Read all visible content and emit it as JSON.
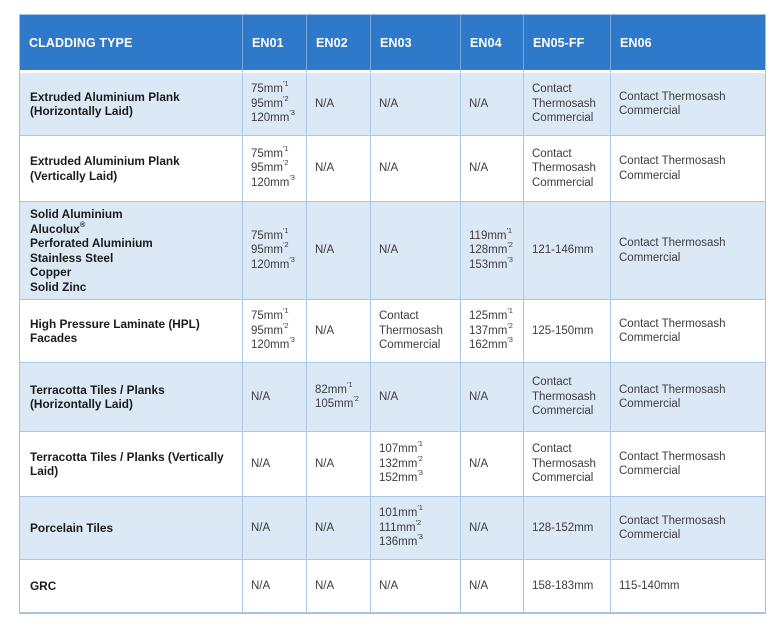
{
  "colors": {
    "header_bg": "#2e79c9",
    "header_text": "#ffffff",
    "row_alt_bg": "#dbe9f7",
    "row_bg": "#ffffff",
    "border": "#a9c7e7",
    "type_text": "#1b1b1b",
    "cell_text": "#3d3d3d"
  },
  "table": {
    "header": {
      "columns": [
        "CLADDING TYPE",
        "EN01",
        "EN02",
        "EN03",
        "EN04",
        "EN05-FF",
        "EN06"
      ]
    },
    "rows": [
      {
        "cells": [
          [
            {
              "t": "Extruded Aluminium Plank"
            },
            {
              "t": "(Horizontally Laid)"
            }
          ],
          [
            {
              "t": "75mm",
              "s": "′1"
            },
            {
              "t": "95mm",
              "s": "′2"
            },
            {
              "t": "120mm",
              "s": "′3"
            }
          ],
          [
            {
              "t": "N/A"
            }
          ],
          [
            {
              "t": "N/A"
            }
          ],
          [
            {
              "t": "N/A"
            }
          ],
          [
            {
              "t": "Contact"
            },
            {
              "t": "Thermosash"
            },
            {
              "t": "Commercial"
            }
          ],
          [
            {
              "t": "Contact Thermosash"
            },
            {
              "t": "Commercial"
            }
          ]
        ]
      },
      {
        "cells": [
          [
            {
              "t": "Extruded Aluminium Plank"
            },
            {
              "t": "(Vertically Laid)"
            }
          ],
          [
            {
              "t": "75mm",
              "s": "′1"
            },
            {
              "t": "95mm",
              "s": "′2"
            },
            {
              "t": "120mm",
              "s": "′3"
            }
          ],
          [
            {
              "t": "N/A"
            }
          ],
          [
            {
              "t": "N/A"
            }
          ],
          [
            {
              "t": "N/A"
            }
          ],
          [
            {
              "t": "Contact"
            },
            {
              "t": "Thermosash"
            },
            {
              "t": "Commercial"
            }
          ],
          [
            {
              "t": "Contact Thermosash"
            },
            {
              "t": "Commercial"
            }
          ]
        ]
      },
      {
        "cells": [
          [
            {
              "t": "Solid Aluminium"
            },
            {
              "t": "Alucolux",
              "s": "®"
            },
            {
              "t": "Perforated Aluminium"
            },
            {
              "t": "Stainless Steel"
            },
            {
              "t": "Copper"
            },
            {
              "t": "Solid Zinc"
            }
          ],
          [
            {
              "t": "75mm",
              "s": "′1"
            },
            {
              "t": "95mm",
              "s": "′2"
            },
            {
              "t": "120mm",
              "s": "′3"
            }
          ],
          [
            {
              "t": "N/A"
            }
          ],
          [
            {
              "t": "N/A"
            }
          ],
          [
            {
              "t": "119mm",
              "s": "′1"
            },
            {
              "t": "128mm",
              "s": "′2"
            },
            {
              "t": "153mm",
              "s": "′3"
            }
          ],
          [
            {
              "t": "121-146mm"
            }
          ],
          [
            {
              "t": "Contact Thermosash"
            },
            {
              "t": "Commercial"
            }
          ]
        ]
      },
      {
        "cells": [
          [
            {
              "t": "High Pressure Laminate (HPL)"
            },
            {
              "t": "Facades"
            }
          ],
          [
            {
              "t": "75mm",
              "s": "′1"
            },
            {
              "t": "95mm",
              "s": "′2"
            },
            {
              "t": "120mm",
              "s": "′3"
            }
          ],
          [
            {
              "t": "N/A"
            }
          ],
          [
            {
              "t": "Contact"
            },
            {
              "t": "Thermosash"
            },
            {
              "t": "Commercial"
            }
          ],
          [
            {
              "t": "125mm",
              "s": "′1"
            },
            {
              "t": "137mm",
              "s": "′2"
            },
            {
              "t": "162mm",
              "s": "′3"
            }
          ],
          [
            {
              "t": "125-150mm"
            }
          ],
          [
            {
              "t": "Contact Thermosash"
            },
            {
              "t": "Commercial"
            }
          ]
        ]
      },
      {
        "cells": [
          [
            {
              "t": "Terracotta Tiles / Planks"
            },
            {
              "t": "(Horizontally Laid)"
            }
          ],
          [
            {
              "t": "N/A"
            }
          ],
          [
            {
              "t": "82mm",
              "s": "′1"
            },
            {
              "t": "105mm",
              "s": "′2"
            }
          ],
          [
            {
              "t": "N/A"
            }
          ],
          [
            {
              "t": "N/A"
            }
          ],
          [
            {
              "t": "Contact"
            },
            {
              "t": "Thermosash"
            },
            {
              "t": "Commercial"
            }
          ],
          [
            {
              "t": "Contact Thermosash"
            },
            {
              "t": "Commercial"
            }
          ]
        ]
      },
      {
        "cells": [
          [
            {
              "t": "Terracotta Tiles / Planks (Vertically"
            },
            {
              "t": "Laid)"
            }
          ],
          [
            {
              "t": "N/A"
            }
          ],
          [
            {
              "t": "N/A"
            }
          ],
          [
            {
              "t": "107mm",
              "s": "′1"
            },
            {
              "t": "132mm",
              "s": "′2"
            },
            {
              "t": "152mm",
              "s": "′3"
            }
          ],
          [
            {
              "t": "N/A"
            }
          ],
          [
            {
              "t": "Contact"
            },
            {
              "t": "Thermosash"
            },
            {
              "t": "Commercial"
            }
          ],
          [
            {
              "t": "Contact Thermosash"
            },
            {
              "t": "Commercial"
            }
          ]
        ]
      },
      {
        "cells": [
          [
            {
              "t": "Porcelain Tiles"
            }
          ],
          [
            {
              "t": "N/A"
            }
          ],
          [
            {
              "t": "N/A"
            }
          ],
          [
            {
              "t": "101mm",
              "s": "′1"
            },
            {
              "t": "111mm",
              "s": "′2"
            },
            {
              "t": "136mm",
              "s": "′3"
            }
          ],
          [
            {
              "t": "N/A"
            }
          ],
          [
            {
              "t": "128-152mm"
            }
          ],
          [
            {
              "t": "Contact Thermosash"
            },
            {
              "t": "Commercial"
            }
          ]
        ]
      },
      {
        "cells": [
          [
            {
              "t": "GRC"
            }
          ],
          [
            {
              "t": "N/A"
            }
          ],
          [
            {
              "t": "N/A"
            }
          ],
          [
            {
              "t": "N/A"
            }
          ],
          [
            {
              "t": "N/A"
            }
          ],
          [
            {
              "t": "158-183mm"
            }
          ],
          [
            {
              "t": "115-140mm"
            }
          ]
        ]
      }
    ]
  }
}
